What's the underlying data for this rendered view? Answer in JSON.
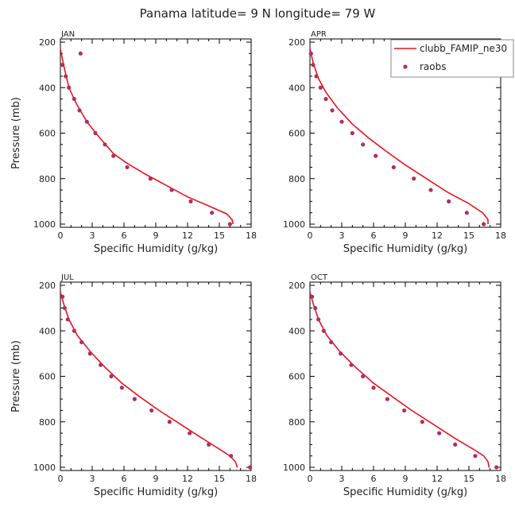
{
  "figure": {
    "title": "Panama  latitude= 9 N longitude= 79 W"
  },
  "legend": {
    "line_label": "clubb_FAMIP_ne30",
    "points_label": "raobs",
    "placement": "top-right of APR panel"
  },
  "colors": {
    "model_line": "#e8141c",
    "obs_points": "#b03060",
    "axes": "#000000"
  },
  "chart_data": [
    {
      "type": "line",
      "panel": "JAN",
      "xlabel": "Specific Humidity (g/kg)",
      "ylabel": "Pressure (mb)",
      "xlim": [
        0,
        18
      ],
      "ylim": [
        1000,
        200
      ],
      "xticks": [
        0,
        3,
        6,
        9,
        12,
        15,
        18
      ],
      "yticks": [
        200,
        400,
        600,
        800,
        1000
      ],
      "series": [
        {
          "name": "clubb_FAMIP_ne30",
          "kind": "line",
          "x": [
            0.0,
            0.3,
            0.8,
            1.5,
            2.5,
            3.7,
            5.0,
            6.2,
            8.0,
            10.0,
            12.0,
            14.0,
            15.7,
            16.2,
            16.3
          ],
          "y": [
            230,
            300,
            400,
            470,
            550,
            620,
            690,
            730,
            780,
            830,
            880,
            920,
            955,
            980,
            1000
          ]
        },
        {
          "name": "raobs",
          "kind": "scatter",
          "x": [
            0.2,
            0.5,
            0.8,
            1.3,
            1.8,
            2.5,
            3.3,
            4.2,
            5.0,
            6.3,
            8.5,
            10.5,
            12.3,
            14.3,
            16.0,
            1.9
          ],
          "y": [
            300,
            350,
            400,
            450,
            500,
            550,
            600,
            650,
            700,
            750,
            800,
            850,
            900,
            950,
            1000,
            250
          ]
        }
      ]
    },
    {
      "type": "line",
      "panel": "APR",
      "xlabel": "Specific Humidity (g/kg)",
      "ylabel": "",
      "xlim": [
        0,
        18
      ],
      "ylim": [
        1000,
        200
      ],
      "xticks": [
        0,
        3,
        6,
        9,
        12,
        15,
        18
      ],
      "yticks": [
        200,
        400,
        600,
        800,
        1000
      ],
      "series": [
        {
          "name": "clubb_FAMIP_ne30",
          "kind": "line",
          "x": [
            0.0,
            0.3,
            0.8,
            1.5,
            2.6,
            4.0,
            5.5,
            7.2,
            9.0,
            11.0,
            13.0,
            15.0,
            16.3,
            16.8,
            16.8
          ],
          "y": [
            230,
            290,
            360,
            420,
            490,
            560,
            620,
            680,
            740,
            800,
            860,
            910,
            950,
            980,
            1000
          ]
        },
        {
          "name": "raobs",
          "kind": "scatter",
          "x": [
            0.1,
            0.3,
            0.6,
            1.0,
            1.5,
            2.1,
            3.0,
            4.0,
            5.0,
            6.2,
            7.9,
            9.8,
            11.4,
            13.1,
            14.8,
            16.4
          ],
          "y": [
            250,
            300,
            350,
            400,
            450,
            500,
            550,
            600,
            650,
            700,
            750,
            800,
            850,
            900,
            950,
            1000
          ]
        }
      ]
    },
    {
      "type": "line",
      "panel": "JUL",
      "xlabel": "Specific Humidity (g/kg)",
      "ylabel": "Pressure (mb)",
      "xlim": [
        0,
        18
      ],
      "ylim": [
        1000,
        200
      ],
      "xticks": [
        0,
        3,
        6,
        9,
        12,
        15,
        18
      ],
      "yticks": [
        200,
        400,
        600,
        800,
        1000
      ],
      "series": [
        {
          "name": "clubb_FAMIP_ne30",
          "kind": "line",
          "x": [
            0.0,
            0.3,
            0.8,
            1.6,
            2.8,
            4.2,
            5.8,
            7.5,
            9.3,
            11.3,
            13.3,
            15.0,
            16.0,
            16.5,
            16.7
          ],
          "y": [
            230,
            280,
            350,
            420,
            490,
            560,
            630,
            690,
            750,
            810,
            870,
            920,
            950,
            975,
            1000
          ]
        },
        {
          "name": "raobs",
          "kind": "scatter",
          "x": [
            0.2,
            0.4,
            0.7,
            1.3,
            2.0,
            2.8,
            3.8,
            4.8,
            5.8,
            7.0,
            8.6,
            10.3,
            12.2,
            14.0,
            16.1,
            17.9
          ],
          "y": [
            250,
            300,
            350,
            400,
            450,
            500,
            550,
            600,
            650,
            700,
            750,
            800,
            850,
            900,
            950,
            1000
          ]
        }
      ]
    },
    {
      "type": "line",
      "panel": "OCT",
      "xlabel": "Specific Humidity (g/kg)",
      "ylabel": "",
      "xlim": [
        0,
        18
      ],
      "ylim": [
        1000,
        200
      ],
      "xticks": [
        0,
        3,
        6,
        9,
        12,
        15,
        18
      ],
      "yticks": [
        200,
        400,
        600,
        800,
        1000
      ],
      "series": [
        {
          "name": "clubb_FAMIP_ne30",
          "kind": "line",
          "x": [
            0.0,
            0.3,
            0.8,
            1.6,
            2.8,
            4.3,
            6.0,
            7.8,
            9.6,
            11.6,
            13.6,
            15.4,
            16.4,
            16.8,
            16.9
          ],
          "y": [
            230,
            280,
            350,
            420,
            490,
            560,
            630,
            690,
            750,
            810,
            870,
            920,
            950,
            975,
            1000
          ]
        },
        {
          "name": "raobs",
          "kind": "scatter",
          "x": [
            0.2,
            0.5,
            0.8,
            1.3,
            2.0,
            2.9,
            3.9,
            5.0,
            6.0,
            7.3,
            8.9,
            10.6,
            12.2,
            13.7,
            15.6,
            17.6
          ],
          "y": [
            250,
            300,
            350,
            400,
            450,
            500,
            550,
            600,
            650,
            700,
            750,
            800,
            850,
            900,
            950,
            1000
          ]
        }
      ]
    }
  ]
}
